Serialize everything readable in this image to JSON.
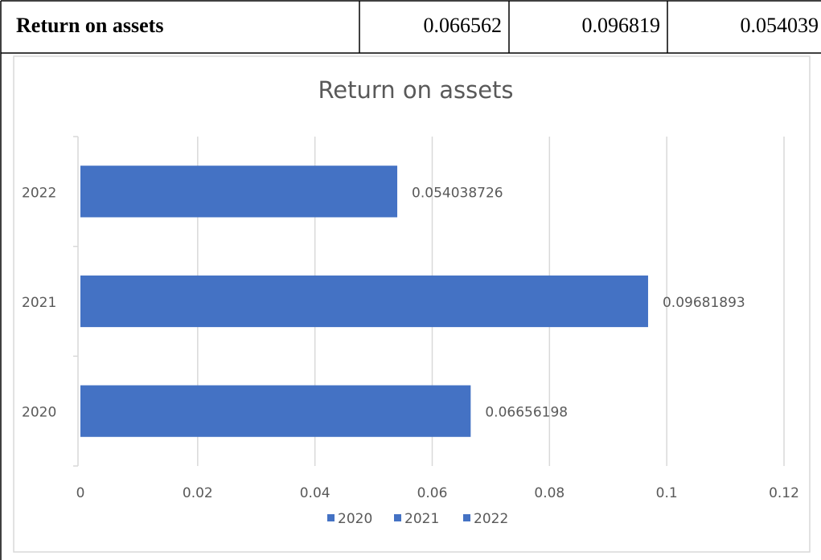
{
  "table": {
    "rows": [
      [
        "Return on assets",
        "0.066562",
        "0.096819",
        "0.054039"
      ]
    ]
  },
  "chart_data": {
    "type": "bar",
    "orientation": "horizontal",
    "title": "Return on assets",
    "categories": [
      "2020",
      "2021",
      "2022"
    ],
    "values": [
      0.06656198,
      0.09681893,
      0.054038726
    ],
    "color": "#4472c4",
    "xlim": [
      0,
      0.12
    ],
    "xticks": [
      0,
      0.02,
      0.04,
      0.06,
      0.08,
      0.1,
      0.12
    ],
    "grid": true,
    "legend": "bottom"
  }
}
